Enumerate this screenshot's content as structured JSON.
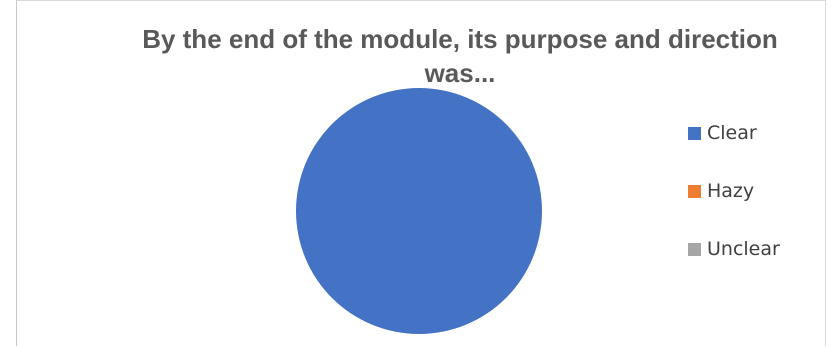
{
  "chart_data": {
    "type": "pie",
    "title": "By the end of the module, its purpose and direction was...",
    "categories": [
      "Clear",
      "Hazy",
      "Unclear"
    ],
    "values": [
      100,
      0,
      0
    ],
    "colors": [
      "#4472c4",
      "#ed7d31",
      "#a5a5a5"
    ],
    "legend_position": "right"
  }
}
